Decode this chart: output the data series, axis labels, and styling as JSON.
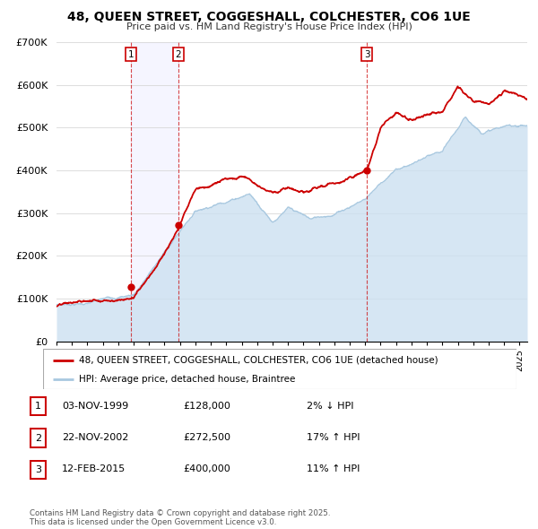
{
  "title": "48, QUEEN STREET, COGGESHALL, COLCHESTER, CO6 1UE",
  "subtitle": "Price paid vs. HM Land Registry's House Price Index (HPI)",
  "legend_line1": "48, QUEEN STREET, COGGESHALL, COLCHESTER, CO6 1UE (detached house)",
  "legend_line2": "HPI: Average price, detached house, Braintree",
  "red_color": "#cc0000",
  "blue_color": "#a8c8e0",
  "blue_fill": "#cce0f0",
  "sale_markers": [
    {
      "num": 1,
      "year": 1999.84,
      "value": 128000,
      "date": "03-NOV-1999",
      "price": "£128,000",
      "pct": "2% ↓ HPI"
    },
    {
      "num": 2,
      "year": 2002.9,
      "value": 272500,
      "date": "22-NOV-2002",
      "price": "£272,500",
      "pct": "17% ↑ HPI"
    },
    {
      "num": 3,
      "year": 2015.12,
      "value": 400000,
      "date": "12-FEB-2015",
      "price": "£400,000",
      "pct": "11% ↑ HPI"
    }
  ],
  "ylim": [
    0,
    700000
  ],
  "yticks": [
    0,
    100000,
    200000,
    300000,
    400000,
    500000,
    600000,
    700000
  ],
  "ytick_labels": [
    "£0",
    "£100K",
    "£200K",
    "£300K",
    "£400K",
    "£500K",
    "£600K",
    "£700K"
  ],
  "footer": "Contains HM Land Registry data © Crown copyright and database right 2025.\nThis data is licensed under the Open Government Licence v3.0.",
  "xstart": 1995,
  "xend": 2025.5
}
